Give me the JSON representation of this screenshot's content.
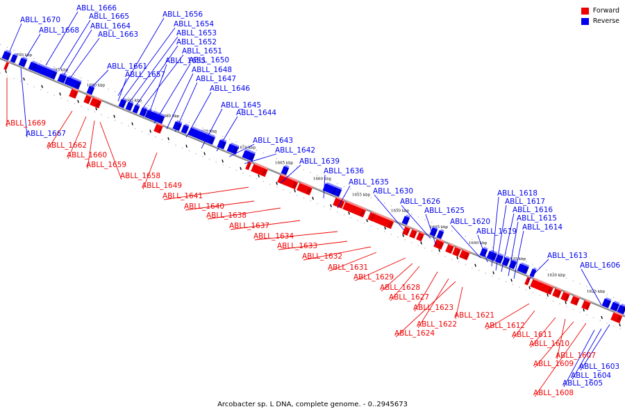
{
  "caption": "Arcobacter sp. L DNA, complete genome. - 0..2945673",
  "legend": [
    {
      "label": "Forward",
      "color": "#ee0000"
    },
    {
      "label": "Reverse",
      "color": "#0000ee"
    }
  ],
  "colors": {
    "forward": "#ee0000",
    "reverse": "#0000ee",
    "axis": "#888888"
  },
  "scale_labels": [
    "1700 kbp",
    "1695 kbp",
    "1690 kbp",
    "1685 kbp",
    "1680 kbp",
    "1675 kbp",
    "1670 kbp",
    "1665 kbp",
    "1660 kbp",
    "1655 kbp",
    "1650 kbp",
    "1645 kbp",
    "1640 kbp",
    "1635 kbp",
    "1630 kbp",
    "1625 kbp"
  ],
  "reverse_genes": [
    "ABLL_1670",
    "ABLL_1668",
    "ABLL_1666",
    "ABLL_1665",
    "ABLL_1664",
    "ABLL_1663",
    "ABLL_1667",
    "ABLL_1661",
    "ABLL_1657",
    "ABLL_1656",
    "ABLL_1654",
    "ABLL_1653",
    "ABLL_1652",
    "ABLL_1651",
    "ABLL_1655",
    "ABLL_1650",
    "ABLL_1648",
    "ABLL_1647",
    "ABLL_1646",
    "ABLL_1645",
    "ABLL_1644",
    "ABLL_1643",
    "ABLL_1642",
    "ABLL_1639",
    "ABLL_1636",
    "ABLL_1635",
    "ABLL_1630",
    "ABLL_1626",
    "ABLL_1625",
    "ABLL_1620",
    "ABLL_1619",
    "ABLL_1618",
    "ABLL_1617",
    "ABLL_1616",
    "ABLL_1615",
    "ABLL_1614",
    "ABLL_1613",
    "ABLL_1606",
    "ABLL_1603",
    "ABLL_1604",
    "ABLL_1605"
  ],
  "forward_genes": [
    "ABLL_1669",
    "ABLL_1662",
    "ABLL_1660",
    "ABLL_1659",
    "ABLL_1658",
    "ABLL_1649",
    "ABLL_1641",
    "ABLL_1640",
    "ABLL_1638",
    "ABLL_1637",
    "ABLL_1634",
    "ABLL_1633",
    "ABLL_1632",
    "ABLL_1631",
    "ABLL_1629",
    "ABLL_1628",
    "ABLL_1627",
    "ABLL_1623",
    "ABLL_1622",
    "ABLL_1624",
    "ABLL_1621",
    "ABLL_1612",
    "ABLL_1611",
    "ABLL_1610",
    "ABLL_1607",
    "ABLL_1609",
    "ABLL_1608"
  ]
}
